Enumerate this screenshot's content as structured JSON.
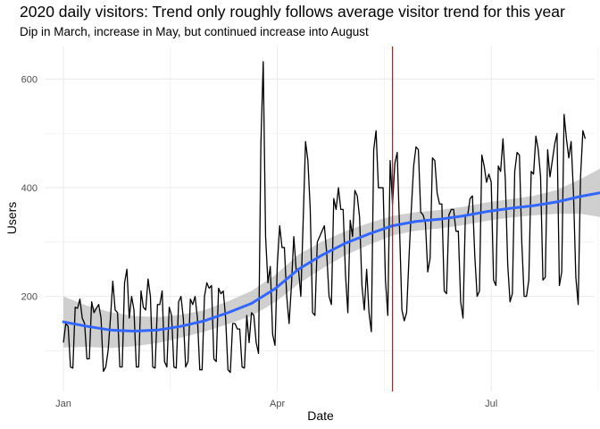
{
  "chart_data": {
    "type": "line",
    "title": "2020 daily visitors: Trend only roughly follows average visitor trend for this year",
    "subtitle": "Dip in March, increase in May, but continued increase into August",
    "xlabel": "Date",
    "ylabel": "Users",
    "x_ticks": [
      "Jan",
      "Apr",
      "Jul"
    ],
    "y_ticks": [
      200,
      400,
      600
    ],
    "ylim": [
      25,
      660
    ],
    "xlim": [
      "2019-12-24",
      "2020-08-14"
    ],
    "x_start": "2020-01-01",
    "grid": true,
    "legend": "none",
    "vline": {
      "x": "2020-05-20",
      "color": "#ff0000"
    },
    "series": [
      {
        "values": [
          115,
          150,
          145,
          70,
          68,
          180,
          178,
          195,
          160,
          150,
          85,
          85,
          190,
          170,
          178,
          185,
          160,
          62,
          70,
          100,
          160,
          228,
          175,
          170,
          70,
          70,
          225,
          250,
          160,
          200,
          175,
          70,
          70,
          210,
          180,
          175,
          232,
          200,
          70,
          68,
          185,
          185,
          210,
          80,
          70,
          180,
          165,
          70,
          68,
          190,
          200,
          160,
          70,
          80,
          195,
          185,
          200,
          160,
          65,
          65,
          200,
          225,
          215,
          220,
          85,
          80,
          215,
          205,
          210,
          160,
          65,
          60,
          150,
          150,
          140,
          140,
          70,
          68,
          165,
          115,
          170,
          165,
          115,
          95,
          480,
          632,
          310,
          225,
          255,
          130,
          110,
          260,
          330,
          290,
          290,
          200,
          150,
          220,
          310,
          250,
          250,
          200,
          340,
          485,
          450,
          360,
          170,
          165,
          300,
          310,
          320,
          330,
          280,
          200,
          185,
          380,
          360,
          400,
          360,
          360,
          240,
          170,
          340,
          310,
          395,
          385,
          345,
          220,
          175,
          250,
          170,
          135,
          470,
          505,
          400,
          400,
          400,
          230,
          165,
          450,
          370,
          445,
          465,
          325,
          175,
          155,
          170,
          270,
          360,
          440,
          475,
          470,
          355,
          350,
          335,
          245,
          270,
          455,
          450,
          390,
          370,
          370,
          210,
          205,
          350,
          360,
          360,
          320,
          320,
          190,
          160,
          350,
          350,
          380,
          385,
          275,
          200,
          210,
          460,
          440,
          410,
          425,
          410,
          230,
          220,
          440,
          430,
          490,
          415,
          260,
          190,
          205,
          430,
          465,
          460,
          300,
          200,
          200,
          230,
          430,
          425,
          495,
          470,
          420,
          230,
          235,
          470,
          420,
          450,
          480,
          500,
          220,
          245,
          535,
          490,
          455,
          485,
          390,
          235,
          185,
          420,
          505,
          490
        ]
      }
    ],
    "trend": {
      "x": [
        0,
        10,
        20,
        30,
        40,
        50,
        60,
        70,
        80,
        90,
        100,
        110,
        120,
        130,
        140,
        150,
        160,
        170,
        180,
        190,
        200,
        210,
        220,
        230
      ],
      "y": [
        153,
        145,
        138,
        136,
        138,
        145,
        155,
        170,
        187,
        214,
        250,
        276,
        298,
        315,
        330,
        338,
        342,
        348,
        356,
        362,
        367,
        374,
        384,
        392
      ],
      "se": [
        47,
        38,
        33,
        28,
        24,
        21,
        20,
        21,
        23,
        25,
        27,
        25,
        22,
        20,
        18,
        17,
        17,
        17,
        17,
        17,
        18,
        22,
        32,
        47
      ],
      "color": "#3366ff",
      "band_color": "#bfbfbf"
    },
    "colors": {
      "line": "#000000",
      "grid": "#ebebeb",
      "vline": "#ff0000"
    }
  }
}
